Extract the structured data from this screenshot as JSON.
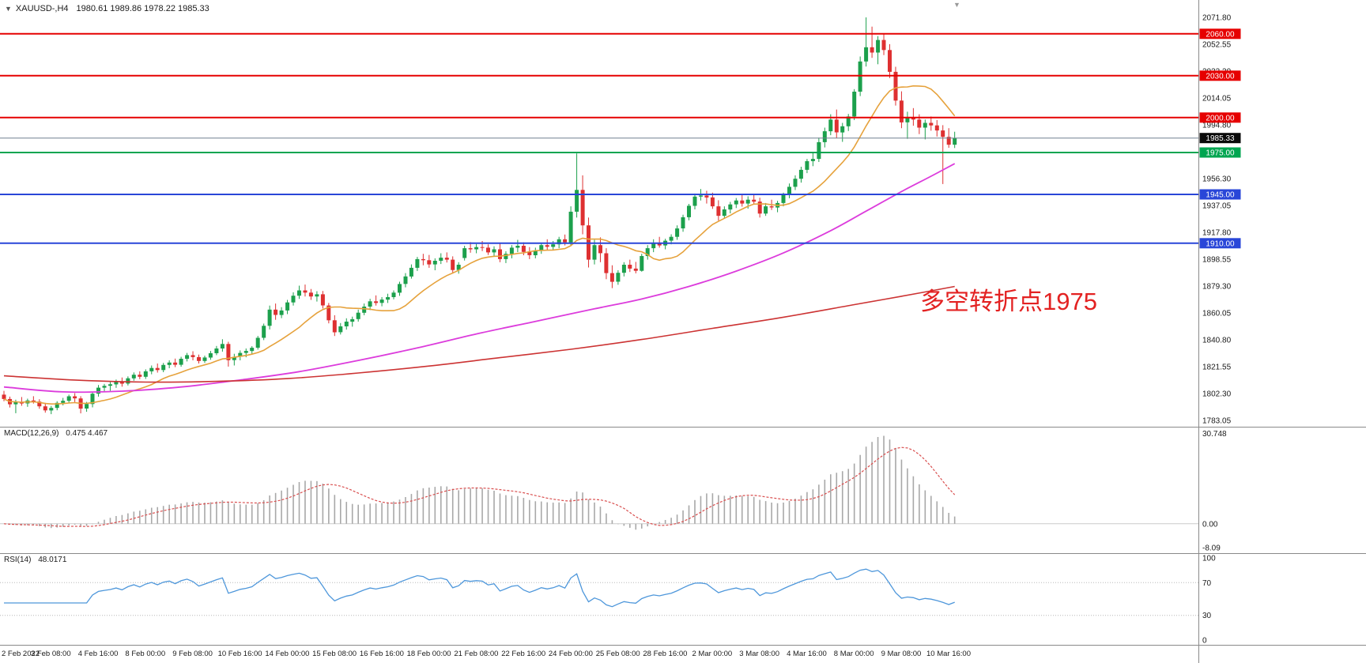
{
  "header": {
    "symbol_period": "XAUUSD-,H4",
    "ohlc": "1980.61 1989.86 1978.22 1985.33"
  },
  "main": {
    "annotation": "多空转折点1975",
    "current_price": "1985.33"
  },
  "indicators": {
    "macd": {
      "title": "MACD(12,26,9)",
      "values": "0.475 4.467"
    },
    "rsi": {
      "title": "RSI(14)",
      "values": "48.0171"
    }
  },
  "chart_data": {
    "type": "candlestick",
    "symbol": "XAUUSD-",
    "timeframe": "H4",
    "y_axis": {
      "max": 2071.8,
      "min": 1783.05,
      "tick_step": 19.25,
      "tick_labels": [
        "2071.80",
        "2052.55",
        "2033.30",
        "2014.05",
        "1994.80",
        "1975.55",
        "1956.30",
        "1937.05",
        "1917.80",
        "1898.55",
        "1879.30",
        "1860.05",
        "1840.80",
        "1821.55",
        "1802.30",
        "1783.05"
      ]
    },
    "time_labels": [
      "2 Feb 2022",
      "3 Feb 08:00",
      "4 Feb 16:00",
      "8 Feb 00:00",
      "9 Feb 08:00",
      "10 Feb 16:00",
      "14 Feb 00:00",
      "15 Feb 08:00",
      "16 Feb 16:00",
      "18 Feb 00:00",
      "21 Feb 08:00",
      "22 Feb 16:00",
      "24 Feb 00:00",
      "25 Feb 08:00",
      "28 Feb 16:00",
      "2 Mar 00:00",
      "3 Mar 08:00",
      "4 Mar 16:00",
      "8 Mar 00:00",
      "9 Mar 08:00",
      "10 Mar 16:00"
    ],
    "label_every_n_bars": 8,
    "current_price": 1985.33,
    "levels": [
      {
        "price": 2060.0,
        "label": "2060.00",
        "color": "#E60000"
      },
      {
        "price": 2030.0,
        "label": "2030.00",
        "color": "#E60000"
      },
      {
        "price": 2000.0,
        "label": "2000.00",
        "color": "#E60000"
      },
      {
        "price": 1975.0,
        "label": "1975.00",
        "color": "#00A550"
      },
      {
        "price": 1945.0,
        "label": "1945.00",
        "color": "#2946D8"
      },
      {
        "price": 1910.0,
        "label": "1910.00",
        "color": "#2946D8"
      }
    ],
    "colors": {
      "up": "#1CA04C",
      "down": "#DE3031",
      "background": "#FFFFFF",
      "axis_text": "#1a1a1a",
      "separator": "#8a8a8a",
      "current_price_line": "#708090",
      "current_price_badge": "#0a0a0a"
    },
    "moving_averages": {
      "fast": {
        "type": "sma",
        "period": 13,
        "color": "#E6A23C"
      },
      "mid": {
        "color": "#DC3CDC",
        "points": [
          [
            0,
            1807
          ],
          [
            10,
            1803.5
          ],
          [
            20,
            1804
          ],
          [
            30,
            1807
          ],
          [
            40,
            1812
          ],
          [
            50,
            1818
          ],
          [
            60,
            1826
          ],
          [
            70,
            1835
          ],
          [
            80,
            1845
          ],
          [
            90,
            1854
          ],
          [
            100,
            1863
          ],
          [
            108,
            1870
          ],
          [
            116,
            1879
          ],
          [
            124,
            1890
          ],
          [
            132,
            1903
          ],
          [
            140,
            1919
          ],
          [
            146,
            1933
          ],
          [
            152,
            1947
          ],
          [
            157,
            1958
          ],
          [
            161,
            1967
          ]
        ]
      },
      "slow": {
        "color": "#CC3333",
        "points": [
          [
            0,
            1815
          ],
          [
            12,
            1812
          ],
          [
            24,
            1810.5
          ],
          [
            36,
            1811
          ],
          [
            48,
            1813
          ],
          [
            60,
            1817
          ],
          [
            72,
            1822
          ],
          [
            84,
            1828
          ],
          [
            96,
            1834
          ],
          [
            108,
            1841
          ],
          [
            120,
            1849
          ],
          [
            132,
            1857
          ],
          [
            144,
            1866
          ],
          [
            152,
            1872
          ],
          [
            161,
            1879
          ]
        ]
      }
    },
    "macd": {
      "fast": 12,
      "slow": 26,
      "signal": 9,
      "axis_labels": [
        "30.748",
        "0.00",
        "-8.09"
      ],
      "hist_color": "#A8A8A8",
      "signal_color": "#D94F4F"
    },
    "rsi": {
      "period": 14,
      "levels": [
        70,
        30
      ],
      "axis_labels": [
        "100",
        "70",
        "30",
        "0"
      ],
      "color": "#4E97DB",
      "level_color": "#B8B8B8"
    },
    "candles": [
      [
        1801.5,
        1804.2,
        1796.8,
        1798.4
      ],
      [
        1798.4,
        1800.1,
        1792.3,
        1794.6
      ],
      [
        1794.6,
        1797.9,
        1788.2,
        1796.1
      ],
      [
        1796.1,
        1799.8,
        1793.5,
        1795.2
      ],
      [
        1795.2,
        1798.6,
        1792.8,
        1797.3
      ],
      [
        1797.3,
        1800.4,
        1795.1,
        1796.5
      ],
      [
        1796.5,
        1798.2,
        1791.4,
        1793.1
      ],
      [
        1793.1,
        1795.6,
        1788.6,
        1790.2
      ],
      [
        1790.2,
        1793.4,
        1787.5,
        1792.0
      ],
      [
        1792.0,
        1796.8,
        1790.3,
        1795.6
      ],
      [
        1795.6,
        1799.2,
        1793.8,
        1797.1
      ],
      [
        1797.1,
        1801.5,
        1795.4,
        1800.3
      ],
      [
        1800.3,
        1802.6,
        1796.2,
        1798.8
      ],
      [
        1798.8,
        1800.4,
        1788.1,
        1791.5
      ],
      [
        1791.5,
        1796.3,
        1789.2,
        1794.8
      ],
      [
        1794.8,
        1803.6,
        1792.4,
        1802.2
      ],
      [
        1802.2,
        1808.4,
        1800.1,
        1806.5
      ],
      [
        1806.5,
        1809.2,
        1803.3,
        1807.8
      ],
      [
        1807.8,
        1810.5,
        1804.2,
        1808.9
      ],
      [
        1808.9,
        1812.3,
        1806.4,
        1810.7
      ],
      [
        1810.7,
        1813.8,
        1807.2,
        1809.4
      ],
      [
        1809.4,
        1814.6,
        1808.1,
        1813.2
      ],
      [
        1813.2,
        1817.4,
        1811.5,
        1815.8
      ],
      [
        1815.8,
        1818.2,
        1812.6,
        1814.3
      ],
      [
        1814.3,
        1819.6,
        1812.8,
        1818.2
      ],
      [
        1818.2,
        1822.4,
        1816.1,
        1820.6
      ],
      [
        1820.6,
        1823.8,
        1817.3,
        1819.1
      ],
      [
        1819.1,
        1824.2,
        1817.6,
        1822.8
      ],
      [
        1822.8,
        1826.1,
        1820.4,
        1824.5
      ],
      [
        1824.5,
        1827.3,
        1821.2,
        1822.9
      ],
      [
        1822.9,
        1828.6,
        1821.5,
        1827.2
      ],
      [
        1827.2,
        1831.4,
        1825.3,
        1829.8
      ],
      [
        1829.8,
        1832.6,
        1826.1,
        1828.4
      ],
      [
        1828.4,
        1830.2,
        1823.8,
        1825.6
      ],
      [
        1825.6,
        1829.4,
        1824.2,
        1828.1
      ],
      [
        1828.1,
        1832.8,
        1826.5,
        1831.2
      ],
      [
        1831.2,
        1836.4,
        1829.8,
        1834.6
      ],
      [
        1834.6,
        1841.2,
        1832.3,
        1837.8
      ],
      [
        1837.8,
        1839.4,
        1821.6,
        1826.2
      ],
      [
        1826.2,
        1830.8,
        1822.4,
        1828.6
      ],
      [
        1828.6,
        1833.2,
        1826.1,
        1831.4
      ],
      [
        1831.4,
        1834.6,
        1828.3,
        1832.8
      ],
      [
        1832.8,
        1836.2,
        1830.4,
        1835.1
      ],
      [
        1835.1,
        1843.6,
        1833.8,
        1842.2
      ],
      [
        1842.2,
        1852.4,
        1840.6,
        1850.8
      ],
      [
        1850.8,
        1865.3,
        1848.2,
        1862.4
      ],
      [
        1862.4,
        1866.8,
        1855.1,
        1858.6
      ],
      [
        1858.6,
        1864.2,
        1856.3,
        1861.8
      ],
      [
        1861.8,
        1869.4,
        1859.2,
        1867.6
      ],
      [
        1867.6,
        1874.8,
        1865.3,
        1872.4
      ],
      [
        1872.4,
        1879.6,
        1870.1,
        1876.2
      ],
      [
        1876.2,
        1880.4,
        1871.8,
        1874.6
      ],
      [
        1874.6,
        1877.2,
        1869.4,
        1871.8
      ],
      [
        1871.8,
        1875.6,
        1868.2,
        1873.4
      ],
      [
        1873.4,
        1875.8,
        1863.2,
        1865.4
      ],
      [
        1865.4,
        1867.2,
        1852.6,
        1854.8
      ],
      [
        1854.8,
        1858.4,
        1843.5,
        1846.2
      ],
      [
        1846.2,
        1852.8,
        1844.6,
        1850.4
      ],
      [
        1850.4,
        1856.2,
        1848.1,
        1853.8
      ],
      [
        1853.8,
        1857.4,
        1850.2,
        1855.6
      ],
      [
        1855.6,
        1862.4,
        1853.8,
        1860.2
      ],
      [
        1860.2,
        1866.8,
        1858.4,
        1864.6
      ],
      [
        1864.6,
        1870.2,
        1862.1,
        1868.4
      ],
      [
        1868.4,
        1872.6,
        1865.3,
        1867.2
      ],
      [
        1867.2,
        1871.4,
        1864.8,
        1869.6
      ],
      [
        1869.6,
        1873.8,
        1867.2,
        1871.4
      ],
      [
        1871.4,
        1876.2,
        1869.8,
        1874.6
      ],
      [
        1874.6,
        1882.4,
        1872.3,
        1880.8
      ],
      [
        1880.8,
        1888.6,
        1878.4,
        1886.2
      ],
      [
        1886.2,
        1894.8,
        1884.6,
        1892.4
      ],
      [
        1892.4,
        1900.2,
        1890.1,
        1898.6
      ],
      [
        1898.6,
        1902.4,
        1894.2,
        1897.8
      ],
      [
        1897.8,
        1901.6,
        1892.4,
        1894.8
      ],
      [
        1894.8,
        1899.2,
        1890.6,
        1897.4
      ],
      [
        1897.4,
        1902.8,
        1895.1,
        1899.6
      ],
      [
        1899.6,
        1903.4,
        1896.2,
        1898.2
      ],
      [
        1898.2,
        1900.6,
        1888.4,
        1890.8
      ],
      [
        1890.8,
        1896.4,
        1888.2,
        1894.6
      ],
      [
        1899.4,
        1908.2,
        1897.6,
        1906.4
      ],
      [
        1906.4,
        1910.8,
        1903.2,
        1905.6
      ],
      [
        1905.6,
        1909.4,
        1902.8,
        1907.2
      ],
      [
        1907.2,
        1911.6,
        1904.4,
        1906.8
      ],
      [
        1906.8,
        1909.2,
        1901.6,
        1903.4
      ],
      [
        1903.4,
        1907.8,
        1900.2,
        1905.6
      ],
      [
        1905.6,
        1909.8,
        1896.4,
        1898.6
      ],
      [
        1898.6,
        1904.2,
        1895.8,
        1902.4
      ],
      [
        1902.4,
        1908.6,
        1899.2,
        1906.8
      ],
      [
        1906.8,
        1912.4,
        1903.6,
        1908.2
      ],
      [
        1908.2,
        1910.6,
        1901.4,
        1903.8
      ],
      [
        1903.8,
        1907.2,
        1898.6,
        1901.4
      ],
      [
        1901.4,
        1906.8,
        1899.2,
        1904.6
      ],
      [
        1904.6,
        1910.2,
        1902.4,
        1908.6
      ],
      [
        1908.6,
        1912.8,
        1905.2,
        1907.4
      ],
      [
        1907.4,
        1911.6,
        1904.8,
        1909.2
      ],
      [
        1909.2,
        1914.6,
        1906.4,
        1912.8
      ],
      [
        1912.8,
        1916.2,
        1908.4,
        1910.6
      ],
      [
        1910.6,
        1936.4,
        1908.2,
        1932.6
      ],
      [
        1932.6,
        1974.3,
        1928.4,
        1948.2
      ],
      [
        1948.2,
        1958.6,
        1916.4,
        1922.8
      ],
      [
        1922.8,
        1928.4,
        1892.6,
        1898.2
      ],
      [
        1898.2,
        1912.4,
        1894.8,
        1908.6
      ],
      [
        1908.6,
        1914.2,
        1896.4,
        1902.8
      ],
      [
        1902.8,
        1906.4,
        1884.2,
        1888.6
      ],
      [
        1888.6,
        1894.2,
        1877.8,
        1882.4
      ],
      [
        1882.4,
        1890.6,
        1880.2,
        1888.8
      ],
      [
        1888.8,
        1896.4,
        1886.2,
        1894.6
      ],
      [
        1894.6,
        1898.2,
        1889.4,
        1891.8
      ],
      [
        1891.8,
        1896.6,
        1888.4,
        1890.2
      ],
      [
        1890.2,
        1902.4,
        1889.6,
        1900.8
      ],
      [
        1900.8,
        1908.6,
        1898.2,
        1906.4
      ],
      [
        1906.4,
        1912.8,
        1903.6,
        1910.2
      ],
      [
        1910.2,
        1914.6,
        1906.8,
        1908.4
      ],
      [
        1908.4,
        1913.2,
        1905.6,
        1911.8
      ],
      [
        1911.8,
        1916.4,
        1909.2,
        1914.6
      ],
      [
        1914.6,
        1922.8,
        1912.4,
        1920.6
      ],
      [
        1920.6,
        1930.4,
        1918.2,
        1928.6
      ],
      [
        1928.6,
        1938.2,
        1926.4,
        1936.8
      ],
      [
        1936.8,
        1945.6,
        1934.2,
        1943.4
      ],
      [
        1943.4,
        1948.8,
        1940.6,
        1944.2
      ],
      [
        1944.2,
        1947.6,
        1938.4,
        1942.8
      ],
      [
        1942.8,
        1946.2,
        1934.6,
        1936.4
      ],
      [
        1936.4,
        1940.8,
        1926.2,
        1929.6
      ],
      [
        1929.6,
        1936.4,
        1927.8,
        1934.2
      ],
      [
        1934.2,
        1939.6,
        1931.4,
        1937.8
      ],
      [
        1937.8,
        1942.4,
        1935.2,
        1940.6
      ],
      [
        1940.6,
        1944.8,
        1936.2,
        1938.4
      ],
      [
        1938.4,
        1943.6,
        1934.8,
        1941.2
      ],
      [
        1941.2,
        1945.4,
        1937.6,
        1939.8
      ],
      [
        1939.8,
        1942.6,
        1928.4,
        1931.2
      ],
      [
        1931.2,
        1938.8,
        1929.6,
        1936.4
      ],
      [
        1936.4,
        1941.2,
        1933.8,
        1935.6
      ],
      [
        1935.6,
        1940.4,
        1932.2,
        1938.8
      ],
      [
        1938.8,
        1946.2,
        1936.4,
        1944.6
      ],
      [
        1944.6,
        1952.8,
        1942.2,
        1950.4
      ],
      [
        1950.4,
        1958.6,
        1948.1,
        1956.2
      ],
      [
        1956.2,
        1964.8,
        1953.4,
        1962.6
      ],
      [
        1962.6,
        1970.4,
        1960.2,
        1968.8
      ],
      [
        1968.8,
        1974.6,
        1965.2,
        1970.4
      ],
      [
        1970.4,
        1985.6,
        1968.2,
        1982.4
      ],
      [
        1982.4,
        1992.8,
        1978.6,
        1990.2
      ],
      [
        1990.2,
        2002.4,
        1987.4,
        1998.6
      ],
      [
        1998.6,
        2005.8,
        1985.2,
        1989.4
      ],
      [
        1989.4,
        1996.2,
        1982.6,
        1993.8
      ],
      [
        1993.8,
        2002.6,
        1990.4,
        2000.8
      ],
      [
        2000.8,
        2020.4,
        1998.2,
        2018.6
      ],
      [
        2018.6,
        2043.8,
        2015.4,
        2040.2
      ],
      [
        2040.2,
        2071.8,
        2036.6,
        2050.4
      ],
      [
        2050.4,
        2065.2,
        2042.8,
        2046.6
      ],
      [
        2046.6,
        2058.4,
        2038.2,
        2055.6
      ],
      [
        2055.6,
        2060.2,
        2044.8,
        2048.4
      ],
      [
        2048.4,
        2052.6,
        2028.4,
        2032.8
      ],
      [
        2032.8,
        2036.4,
        2008.6,
        2012.2
      ],
      [
        2012.2,
        2018.8,
        1992.4,
        1996.6
      ],
      [
        1996.6,
        2004.2,
        1984.8,
        2000.4
      ],
      [
        2000.4,
        2006.8,
        1994.2,
        1998.6
      ],
      [
        1998.6,
        2002.4,
        1988.2,
        1992.8
      ],
      [
        1992.8,
        1998.6,
        1984.4,
        1996.2
      ],
      [
        1996.2,
        2000.8,
        1990.6,
        1994.4
      ],
      [
        1994.4,
        1998.2,
        1986.4,
        1990.8
      ],
      [
        1990.8,
        1994.6,
        1952.4,
        1986.2
      ],
      [
        1986.2,
        1992.4,
        1978.4,
        1980.6
      ],
      [
        1980.6,
        1989.9,
        1978.2,
        1985.3
      ]
    ]
  }
}
